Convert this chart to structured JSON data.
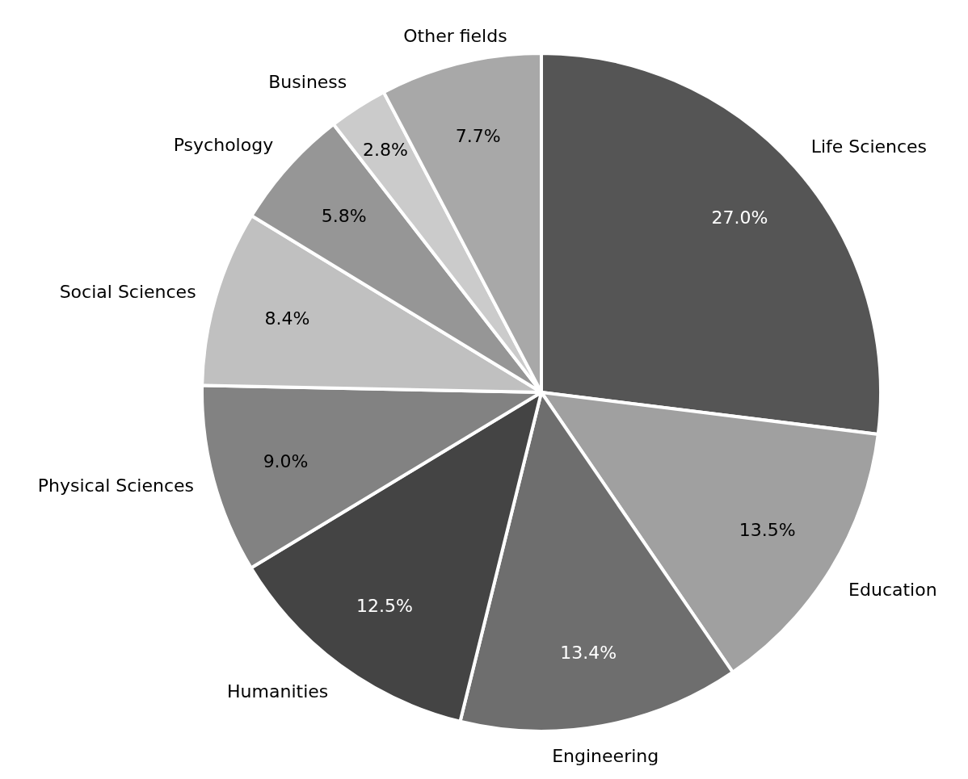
{
  "chart_data": {
    "type": "pie",
    "categories": [
      "Life Sciences",
      "Education",
      "Engineering",
      "Humanities",
      "Physical Sciences",
      "Social Sciences",
      "Psychology",
      "Business",
      "Other fields"
    ],
    "values": [
      27.0,
      13.5,
      13.4,
      12.5,
      9.0,
      8.4,
      5.8,
      2.8,
      7.7
    ],
    "value_labels": [
      "27.0%",
      "13.5%",
      "13.4%",
      "12.5%",
      "9.0%",
      "8.4%",
      "5.8%",
      "2.8%",
      "7.7%"
    ],
    "colors": [
      "#555555",
      "#a0a0a0",
      "#6e6e6e",
      "#444444",
      "#828282",
      "#c0c0c0",
      "#969696",
      "#cbcbcb",
      "#a8a8a8"
    ]
  }
}
